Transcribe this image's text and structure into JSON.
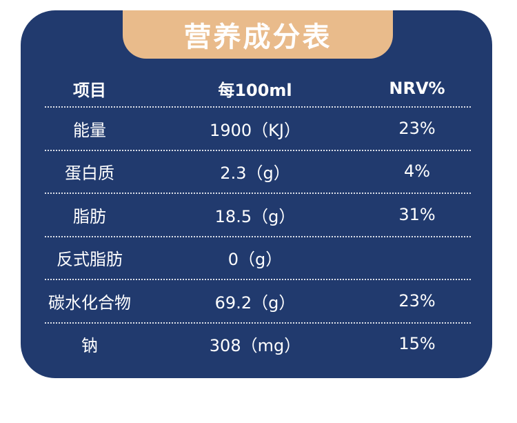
{
  "title": "营养成分表",
  "headers": {
    "item": "项目",
    "per": "每100ml",
    "nrv": "NRV%"
  },
  "rows": [
    {
      "item": "能量",
      "value": "1900（KJ）",
      "nrv": "23%"
    },
    {
      "item": "蛋白质",
      "value": "2.3（g）",
      "nrv": "4%"
    },
    {
      "item": "脂肪",
      "value": "18.5（g）",
      "nrv": "31%"
    },
    {
      "item": "反式脂肪",
      "value": "0（g）",
      "nrv": ""
    },
    {
      "item": "碳水化合物",
      "value": "69.2（g）",
      "nrv": "23%"
    },
    {
      "item": "钠",
      "value": "308（mg）",
      "nrv": "15%"
    }
  ],
  "colors": {
    "card": "#213a6e",
    "tab": "#e9bb8b",
    "text": "#ffffff"
  }
}
